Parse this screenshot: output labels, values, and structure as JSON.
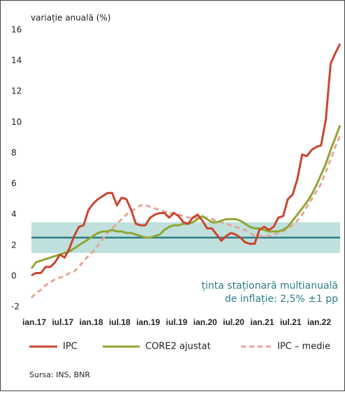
{
  "chart_data": {
    "type": "line",
    "ylabel": "variație anuală (%)",
    "categories": [
      "ian.17",
      null,
      null,
      null,
      null,
      null,
      "iul.17",
      null,
      null,
      null,
      null,
      null,
      "ian.18",
      null,
      null,
      null,
      null,
      null,
      "iul.18",
      null,
      null,
      null,
      null,
      null,
      "ian.19",
      null,
      null,
      null,
      null,
      null,
      "iul.19",
      null,
      null,
      null,
      null,
      null,
      "ian.20",
      null,
      null,
      null,
      null,
      null,
      "iul.20",
      null,
      null,
      null,
      null,
      null,
      "ian.21",
      null,
      null,
      null,
      null,
      null,
      "iul.21",
      null,
      null,
      null,
      null,
      null,
      "ian.22",
      null,
      null,
      null,
      null,
      null
    ],
    "series": [
      {
        "name": "IPC",
        "color": "#c9452e",
        "dash": false,
        "values": [
          0.05,
          0.2,
          0.2,
          0.6,
          0.6,
          0.9,
          1.4,
          1.2,
          1.8,
          2.6,
          3.2,
          3.3,
          4.3,
          4.7,
          5.0,
          5.2,
          5.4,
          5.4,
          4.6,
          5.1,
          5.0,
          4.3,
          3.4,
          3.3,
          3.3,
          3.8,
          4.0,
          4.1,
          4.1,
          3.8,
          4.1,
          3.9,
          3.5,
          3.4,
          3.8,
          4.0,
          3.6,
          3.1,
          3.1,
          2.7,
          2.3,
          2.6,
          2.8,
          2.7,
          2.5,
          2.2,
          2.1,
          2.1,
          3.0,
          3.2,
          3.0,
          3.2,
          3.8,
          3.9,
          5.0,
          5.3,
          6.3,
          7.9,
          7.8,
          8.2,
          8.4,
          8.5,
          10.2,
          13.8,
          14.5,
          15.1
        ]
      },
      {
        "name": "CORE2 ajustat",
        "color": "#8ea632",
        "dash": false,
        "values": [
          0.5,
          0.9,
          1.0,
          1.1,
          1.2,
          1.3,
          1.4,
          1.5,
          1.6,
          1.8,
          2.0,
          2.2,
          2.4,
          2.6,
          2.8,
          2.9,
          2.9,
          3.0,
          2.9,
          2.9,
          2.8,
          2.8,
          2.7,
          2.6,
          2.5,
          2.5,
          2.6,
          2.7,
          3.0,
          3.2,
          3.3,
          3.3,
          3.4,
          3.4,
          3.5,
          3.7,
          3.9,
          3.7,
          3.5,
          3.5,
          3.6,
          3.7,
          3.7,
          3.7,
          3.6,
          3.4,
          3.2,
          3.1,
          3.1,
          3.0,
          2.9,
          2.9,
          2.9,
          3.0,
          3.2,
          3.6,
          4.0,
          4.4,
          4.8,
          5.3,
          5.9,
          6.6,
          7.3,
          8.2,
          9.0,
          9.8
        ]
      },
      {
        "name": "IPC – medie",
        "color": "#e8a598",
        "dash": true,
        "values": [
          -1.4,
          -1.1,
          -0.9,
          -0.6,
          -0.4,
          -0.2,
          -0.1,
          0.0,
          0.2,
          0.3,
          0.6,
          1.0,
          1.3,
          1.6,
          2.0,
          2.4,
          2.8,
          3.1,
          3.4,
          3.7,
          4.0,
          4.2,
          4.4,
          4.6,
          4.6,
          4.5,
          4.4,
          4.3,
          4.2,
          4.1,
          4.1,
          4.0,
          3.9,
          3.8,
          3.8,
          3.8,
          3.8,
          3.8,
          3.7,
          3.6,
          3.5,
          3.4,
          3.3,
          3.2,
          3.1,
          3.0,
          2.8,
          2.6,
          2.6,
          2.6,
          2.6,
          2.7,
          2.8,
          2.9,
          3.1,
          3.3,
          3.6,
          4.0,
          4.5,
          5.0,
          5.5,
          6.0,
          6.8,
          7.6,
          8.4,
          9.2
        ]
      }
    ],
    "target": {
      "value": 2.5,
      "band": [
        1.5,
        3.5
      ],
      "band_color": "#bfe0dc",
      "color": "#2e7d85",
      "label": [
        "ținta staționară multianuală",
        "de inflație: 2,5% ±1 pp"
      ]
    },
    "ylim": [
      -2,
      16
    ],
    "yticks": [
      -2,
      0,
      2,
      4,
      6,
      8,
      10,
      12,
      14,
      16
    ],
    "source": "Sursa: INS, BNR"
  }
}
